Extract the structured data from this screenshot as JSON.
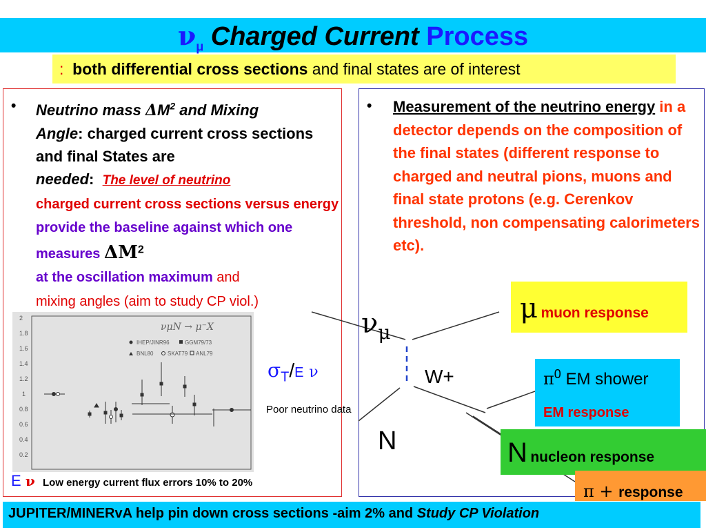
{
  "title": {
    "nu": "ν",
    "mu_sub": "μ",
    "charged_current": "Charged Current",
    "process": "Process"
  },
  "subtitle": {
    "colon": ":",
    "bold": "both differential cross sections",
    "rest": " and final states are of interest"
  },
  "left": {
    "bullet": "•",
    "line1_a": "Neutrino mass ",
    "delta": "Δ",
    "M": "M",
    "sq": "2",
    "line1_b": " and Mixing",
    "angle": "Angle",
    "line2_rest": ":  charged current  cross sections and final States are",
    "needed": "needed",
    "needed_colon": ":",
    "level": "The level of neutrino",
    "red_text": "charged current cross sections versus energy",
    "purple_text1": " provide the baseline against which one measures ",
    "dm": "ΔM",
    "dm_sq": "2",
    "purple_text2": "at the oscillation maximum",
    "red_and": " and",
    "red_tail": "mixing angles (aim to study CP viol.)"
  },
  "right": {
    "bullet": "•",
    "measurement": "Measurement of the neutrino energy",
    "red_text": " in a detector depends on the composition of the final states (different response to charged and neutral pions, muons and final state protons (e.g. Cerenkov threshold, non compensating calorimeters etc)."
  },
  "plot": {
    "y_ticks": [
      "2",
      "1.8",
      "1.6",
      "1.4",
      "1.2",
      "1",
      "0.8",
      "0.6",
      "0.4",
      "0.2"
    ],
    "reaction": "νμN → μ⁻X",
    "legend": [
      "IHEP/JINR96",
      "GGM79/73",
      "BNL80",
      "SKAT79",
      "ANL79"
    ]
  },
  "sigma_label": {
    "sigma": "σ",
    "T": "T",
    "slash": "/",
    "E": "E",
    "nu": "ν"
  },
  "poor_data": "Poor neutrino data",
  "e_nu": {
    "E": "E",
    "nu": "ν"
  },
  "flux_errors": "Low energy current  flux errors 10% to 20%",
  "diagram": {
    "nu": "ν",
    "mu": "μ",
    "W": "W+",
    "N": "N"
  },
  "muon": {
    "symbol": "μ",
    "label": "muon response"
  },
  "pi0": {
    "symbol": "π",
    "sup": "0",
    "label": " EM shower",
    "em_response": "EM response"
  },
  "nucleon": {
    "symbol": "N",
    "label": "nucleon response"
  },
  "piplus": {
    "symbol": "π + ",
    "label": "response"
  },
  "footer": {
    "bold": "JUPITER/MINERvA help pin down cross sections -aim 2% and ",
    "italic": "Study CP Violation"
  },
  "colors": {
    "cyan": "#00ccff",
    "yellow": "#ffff66",
    "green": "#33cc33",
    "orange": "#ff9933",
    "red": "#e00000",
    "purple": "#6600cc",
    "blue": "#1a1aff"
  }
}
